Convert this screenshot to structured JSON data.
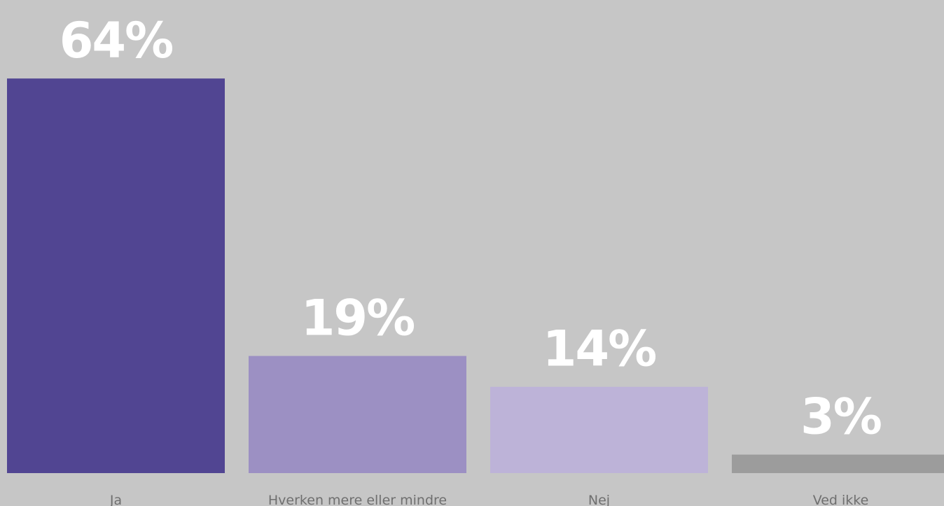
{
  "chart_data": {
    "type": "bar",
    "categories": [
      "Ja",
      "Hverken mere eller mindre",
      "Nej",
      "Ved ikke"
    ],
    "values": [
      64,
      19,
      14,
      3
    ],
    "value_labels": [
      "64%",
      "19%",
      "14%",
      "3%"
    ],
    "colors": [
      "#514592",
      "#9c90c3",
      "#bdb3d8",
      "#9c9c9c"
    ],
    "background": "#c6c6c6",
    "title": "",
    "xlabel": "",
    "ylabel": "",
    "grid": false,
    "legend": "none"
  }
}
